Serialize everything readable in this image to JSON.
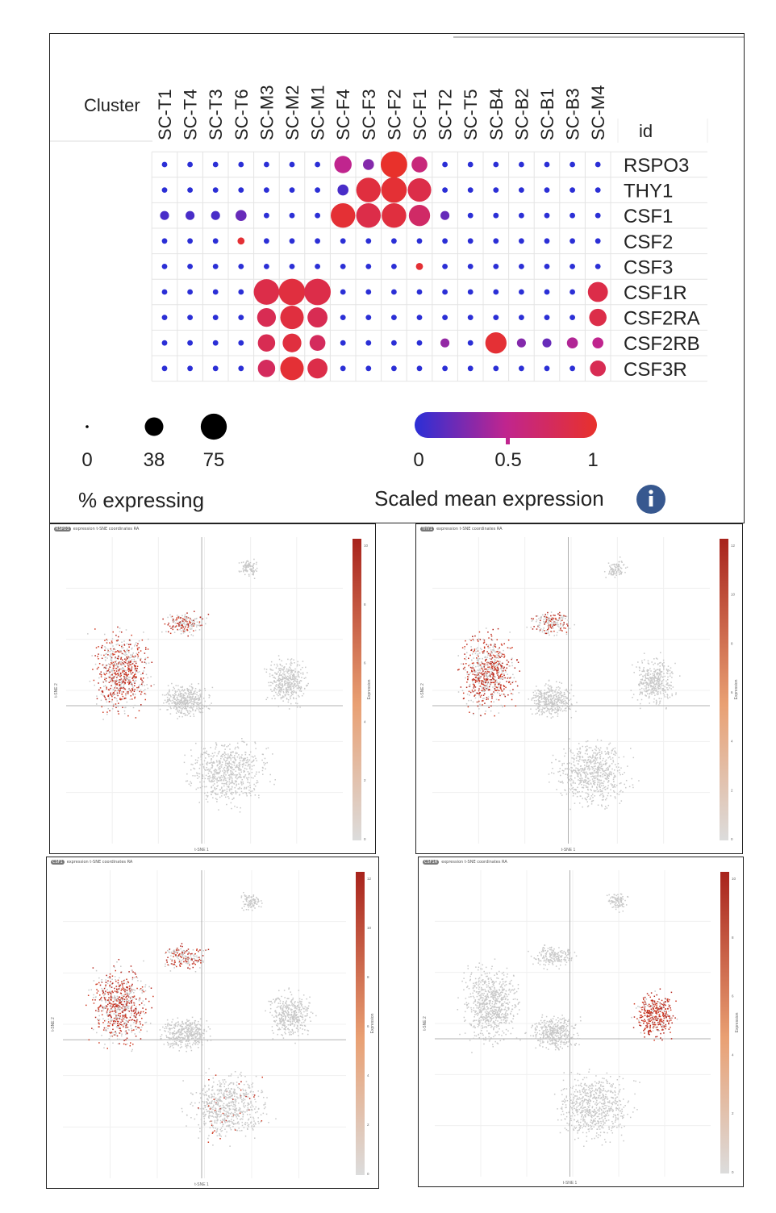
{
  "dotplot": {
    "cluster_label": "Cluster",
    "id_label": "id",
    "size_legend": {
      "values": [
        "0",
        "38",
        "75"
      ],
      "title": "% expressing"
    },
    "color_legend": {
      "ticks": [
        "0",
        "0.5",
        "1"
      ],
      "title": "Scaled mean expression",
      "low_color": "#2b2fd6",
      "mid_color": "#c0258e",
      "high_color": "#e8312b"
    },
    "info_icon": "info-icon"
  },
  "chart_data": [
    {
      "type": "dotplot",
      "title": "",
      "columns": [
        "SC-T1",
        "SC-T4",
        "SC-T3",
        "SC-T6",
        "SC-M3",
        "SC-M2",
        "SC-M1",
        "SC-F4",
        "SC-F3",
        "SC-F2",
        "SC-F1",
        "SC-T2",
        "SC-T5",
        "SC-B4",
        "SC-B2",
        "SC-B1",
        "SC-B3",
        "SC-M4"
      ],
      "rows": [
        "RSPO3",
        "THY1",
        "CSF1",
        "CSF2",
        "CSF3",
        "CSF1R",
        "CSF2RA",
        "CSF2RB",
        "CSF3R"
      ],
      "pct_expressing": [
        [
          3,
          3,
          3,
          3,
          3,
          3,
          3,
          30,
          12,
          70,
          25,
          3,
          3,
          3,
          3,
          3,
          3,
          3
        ],
        [
          3,
          3,
          3,
          3,
          3,
          3,
          3,
          12,
          60,
          65,
          55,
          3,
          3,
          3,
          3,
          3,
          3,
          3
        ],
        [
          8,
          8,
          8,
          12,
          3,
          3,
          3,
          60,
          60,
          60,
          45,
          8,
          3,
          3,
          3,
          3,
          3,
          3
        ],
        [
          3,
          3,
          3,
          5,
          3,
          3,
          3,
          3,
          3,
          3,
          3,
          3,
          3,
          3,
          3,
          3,
          3,
          3
        ],
        [
          3,
          3,
          3,
          3,
          3,
          3,
          3,
          3,
          3,
          3,
          5,
          3,
          3,
          3,
          3,
          3,
          3,
          3
        ],
        [
          3,
          3,
          3,
          3,
          65,
          70,
          70,
          3,
          3,
          3,
          3,
          3,
          3,
          3,
          3,
          3,
          3,
          40
        ],
        [
          3,
          3,
          3,
          3,
          35,
          55,
          40,
          3,
          3,
          3,
          3,
          3,
          3,
          3,
          3,
          3,
          3,
          30
        ],
        [
          3,
          3,
          3,
          3,
          30,
          35,
          25,
          3,
          3,
          3,
          3,
          8,
          3,
          45,
          8,
          8,
          12,
          12
        ],
        [
          3,
          3,
          3,
          3,
          30,
          55,
          40,
          3,
          3,
          3,
          3,
          3,
          3,
          3,
          3,
          3,
          3,
          25
        ]
      ],
      "scaled_mean_expression": [
        [
          0,
          0,
          0,
          0,
          0,
          0,
          0,
          0.5,
          0.3,
          1,
          0.6,
          0,
          0,
          0,
          0,
          0,
          0,
          0
        ],
        [
          0,
          0,
          0,
          0,
          0,
          0,
          0,
          0.1,
          0.9,
          0.95,
          0.85,
          0,
          0,
          0,
          0,
          0,
          0,
          0
        ],
        [
          0.1,
          0.1,
          0.1,
          0.2,
          0,
          0,
          0,
          0.95,
          0.85,
          0.9,
          0.7,
          0.2,
          0,
          0,
          0,
          0,
          0,
          0
        ],
        [
          0,
          0,
          0,
          0.95,
          0,
          0,
          0,
          0,
          0,
          0,
          0,
          0,
          0,
          0,
          0,
          0,
          0,
          0
        ],
        [
          0,
          0,
          0,
          0,
          0,
          0,
          0,
          0,
          0,
          0,
          0.95,
          0,
          0,
          0,
          0,
          0,
          0,
          0
        ],
        [
          0,
          0,
          0,
          0,
          0.85,
          0.9,
          0.85,
          0,
          0,
          0,
          0,
          0,
          0,
          0,
          0,
          0,
          0,
          0.85
        ],
        [
          0,
          0,
          0,
          0,
          0.8,
          0.9,
          0.8,
          0,
          0,
          0,
          0,
          0,
          0,
          0,
          0,
          0,
          0,
          0.85
        ],
        [
          0,
          0,
          0,
          0,
          0.8,
          0.9,
          0.75,
          0,
          0,
          0,
          0,
          0.35,
          0,
          0.95,
          0.3,
          0.2,
          0.45,
          0.5
        ],
        [
          0,
          0,
          0,
          0,
          0.75,
          0.95,
          0.85,
          0,
          0,
          0,
          0,
          0,
          0,
          0,
          0,
          0,
          0,
          0.8
        ]
      ],
      "size_scale": [
        0,
        38,
        75
      ],
      "color_scale": [
        0,
        0.5,
        1
      ]
    },
    {
      "type": "scatter",
      "gene": "RSPO3",
      "header": "expression t-SNE coordinates RA",
      "xlabel": "t-SNE 1",
      "ylabel": "t-SNE 2",
      "colorbar_label": "Expression",
      "colorbar_ticks": [
        "0",
        "2",
        "4",
        "6",
        "8",
        "10"
      ],
      "hot_regions": [
        "fibroblast cluster (left)",
        "upper-middle cluster"
      ]
    },
    {
      "type": "scatter",
      "gene": "THY1",
      "header": "expression t-SNE coordinates RA",
      "xlabel": "t-SNE 1",
      "ylabel": "t-SNE 2",
      "colorbar_label": "Expression",
      "colorbar_ticks": [
        "0",
        "2",
        "4",
        "6",
        "8",
        "10",
        "12"
      ],
      "hot_regions": [
        "fibroblast cluster (left)",
        "upper-middle cluster"
      ]
    },
    {
      "type": "scatter",
      "gene": "CSF1",
      "header": "expression t-SNE coordinates RA",
      "xlabel": "t-SNE 1",
      "ylabel": "t-SNE 2",
      "colorbar_label": "Expression",
      "colorbar_ticks": [
        "0",
        "2",
        "4",
        "6",
        "8",
        "10",
        "12"
      ],
      "hot_regions": [
        "fibroblast cluster (left)",
        "upper-middle cluster",
        "lower cluster (sparse)"
      ]
    },
    {
      "type": "scatter",
      "gene": "CSF1R",
      "header": "expression t-SNE coordinates RA",
      "xlabel": "t-SNE 1",
      "ylabel": "t-SNE 2",
      "colorbar_label": "Expression",
      "colorbar_ticks": [
        "0",
        "2",
        "4",
        "6",
        "8",
        "10"
      ],
      "hot_regions": [
        "myeloid cluster (right)"
      ]
    }
  ]
}
